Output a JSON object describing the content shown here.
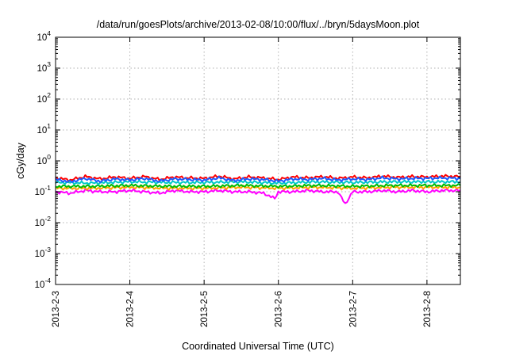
{
  "chart_data": {
    "type": "line",
    "title": "/data/run/goesPlots/archive/2013-02-08/10:00/flux/../bryn/5daysMoon.plot",
    "xlabel": "Coordinated Universal Time (UTC)",
    "ylabel": "cGy/day",
    "y_scale": "log",
    "ylim": [
      0.0001,
      10000
    ],
    "xlim_days": [
      0,
      5.45
    ],
    "x_ticks": [
      {
        "label": "2013-2-3",
        "day": 0
      },
      {
        "label": "2013-2-4",
        "day": 1
      },
      {
        "label": "2013-2-5",
        "day": 2
      },
      {
        "label": "2013-2-6",
        "day": 3
      },
      {
        "label": "2013-2-7",
        "day": 4
      },
      {
        "label": "2013-2-8",
        "day": 5
      }
    ],
    "y_ticks": [
      {
        "base": "10",
        "exp": "-4",
        "value": 0.0001
      },
      {
        "base": "10",
        "exp": "-3",
        "value": 0.001
      },
      {
        "base": "10",
        "exp": "-2",
        "value": 0.01
      },
      {
        "base": "10",
        "exp": "-1",
        "value": 0.1
      },
      {
        "base": "10",
        "exp": "0",
        "value": 1
      },
      {
        "base": "10",
        "exp": "1",
        "value": 10
      },
      {
        "base": "10",
        "exp": "2",
        "value": 100
      },
      {
        "base": "10",
        "exp": "3",
        "value": 1000
      },
      {
        "base": "10",
        "exp": "4",
        "value": 10000
      }
    ],
    "grid": true,
    "series": [
      {
        "color": "#ff00ff",
        "typical": 0.1,
        "points": [
          [
            0.0,
            0.1
          ],
          [
            0.2,
            0.09
          ],
          [
            0.4,
            0.11
          ],
          [
            0.6,
            0.1
          ],
          [
            0.8,
            0.1
          ],
          [
            1.0,
            0.11
          ],
          [
            1.2,
            0.1
          ],
          [
            1.4,
            0.09
          ],
          [
            1.6,
            0.11
          ],
          [
            1.8,
            0.1
          ],
          [
            2.0,
            0.1
          ],
          [
            2.2,
            0.11
          ],
          [
            2.4,
            0.1
          ],
          [
            2.6,
            0.1
          ],
          [
            2.8,
            0.09
          ],
          [
            2.95,
            0.06
          ],
          [
            3.0,
            0.1
          ],
          [
            3.2,
            0.1
          ],
          [
            3.4,
            0.11
          ],
          [
            3.6,
            0.1
          ],
          [
            3.8,
            0.1
          ],
          [
            3.9,
            0.04
          ],
          [
            4.0,
            0.1
          ],
          [
            4.2,
            0.1
          ],
          [
            4.4,
            0.11
          ],
          [
            4.6,
            0.1
          ],
          [
            4.8,
            0.11
          ],
          [
            5.0,
            0.1
          ],
          [
            5.2,
            0.11
          ],
          [
            5.45,
            0.11
          ]
        ]
      },
      {
        "color": "#ffa500",
        "typical": 0.13,
        "points": [
          [
            0.0,
            0.13
          ],
          [
            0.5,
            0.13
          ],
          [
            1.0,
            0.14
          ],
          [
            1.5,
            0.13
          ],
          [
            2.0,
            0.13
          ],
          [
            2.5,
            0.14
          ],
          [
            3.0,
            0.13
          ],
          [
            3.5,
            0.14
          ],
          [
            4.0,
            0.13
          ],
          [
            4.5,
            0.14
          ],
          [
            5.0,
            0.14
          ],
          [
            5.45,
            0.14
          ]
        ]
      },
      {
        "color": "#00bb00",
        "typical": 0.15,
        "points": [
          [
            0.0,
            0.15
          ],
          [
            0.5,
            0.15
          ],
          [
            1.0,
            0.16
          ],
          [
            1.5,
            0.15
          ],
          [
            2.0,
            0.15
          ],
          [
            2.5,
            0.16
          ],
          [
            3.0,
            0.15
          ],
          [
            3.5,
            0.16
          ],
          [
            4.0,
            0.15
          ],
          [
            4.5,
            0.16
          ],
          [
            5.0,
            0.16
          ],
          [
            5.45,
            0.16
          ]
        ]
      },
      {
        "color": "#00c8c8",
        "typical": 0.2,
        "points": [
          [
            0.0,
            0.2
          ],
          [
            0.5,
            0.19
          ],
          [
            1.0,
            0.21
          ],
          [
            1.5,
            0.2
          ],
          [
            2.0,
            0.2
          ],
          [
            2.5,
            0.21
          ],
          [
            3.0,
            0.19
          ],
          [
            3.5,
            0.21
          ],
          [
            4.0,
            0.2
          ],
          [
            4.5,
            0.21
          ],
          [
            5.0,
            0.21
          ],
          [
            5.45,
            0.21
          ]
        ]
      },
      {
        "color": "#ff0000",
        "typical": 0.28,
        "points": [
          [
            0.0,
            0.28
          ],
          [
            0.2,
            0.24
          ],
          [
            0.4,
            0.31
          ],
          [
            0.6,
            0.26
          ],
          [
            0.8,
            0.3
          ],
          [
            1.0,
            0.27
          ],
          [
            1.2,
            0.31
          ],
          [
            1.4,
            0.25
          ],
          [
            1.6,
            0.3
          ],
          [
            1.8,
            0.28
          ],
          [
            2.0,
            0.27
          ],
          [
            2.2,
            0.32
          ],
          [
            2.4,
            0.26
          ],
          [
            2.6,
            0.3
          ],
          [
            2.8,
            0.28
          ],
          [
            3.0,
            0.25
          ],
          [
            3.2,
            0.3
          ],
          [
            3.4,
            0.28
          ],
          [
            3.6,
            0.31
          ],
          [
            3.8,
            0.27
          ],
          [
            4.0,
            0.3
          ],
          [
            4.2,
            0.28
          ],
          [
            4.4,
            0.32
          ],
          [
            4.6,
            0.29
          ],
          [
            4.8,
            0.31
          ],
          [
            5.0,
            0.3
          ],
          [
            5.2,
            0.32
          ],
          [
            5.45,
            0.31
          ]
        ]
      },
      {
        "color": "#1e5cff",
        "typical": 0.25,
        "points": [
          [
            0.0,
            0.25
          ],
          [
            0.2,
            0.21
          ],
          [
            0.4,
            0.27
          ],
          [
            0.6,
            0.22
          ],
          [
            0.8,
            0.26
          ],
          [
            1.0,
            0.24
          ],
          [
            1.2,
            0.27
          ],
          [
            1.4,
            0.22
          ],
          [
            1.6,
            0.26
          ],
          [
            1.8,
            0.25
          ],
          [
            2.0,
            0.24
          ],
          [
            2.2,
            0.28
          ],
          [
            2.4,
            0.23
          ],
          [
            2.6,
            0.26
          ],
          [
            2.8,
            0.25
          ],
          [
            3.0,
            0.22
          ],
          [
            3.2,
            0.26
          ],
          [
            3.4,
            0.25
          ],
          [
            3.6,
            0.27
          ],
          [
            3.8,
            0.24
          ],
          [
            4.0,
            0.26
          ],
          [
            4.2,
            0.25
          ],
          [
            4.4,
            0.28
          ],
          [
            4.6,
            0.26
          ],
          [
            4.8,
            0.27
          ],
          [
            5.0,
            0.27
          ],
          [
            5.2,
            0.28
          ],
          [
            5.45,
            0.27
          ]
        ]
      }
    ]
  }
}
